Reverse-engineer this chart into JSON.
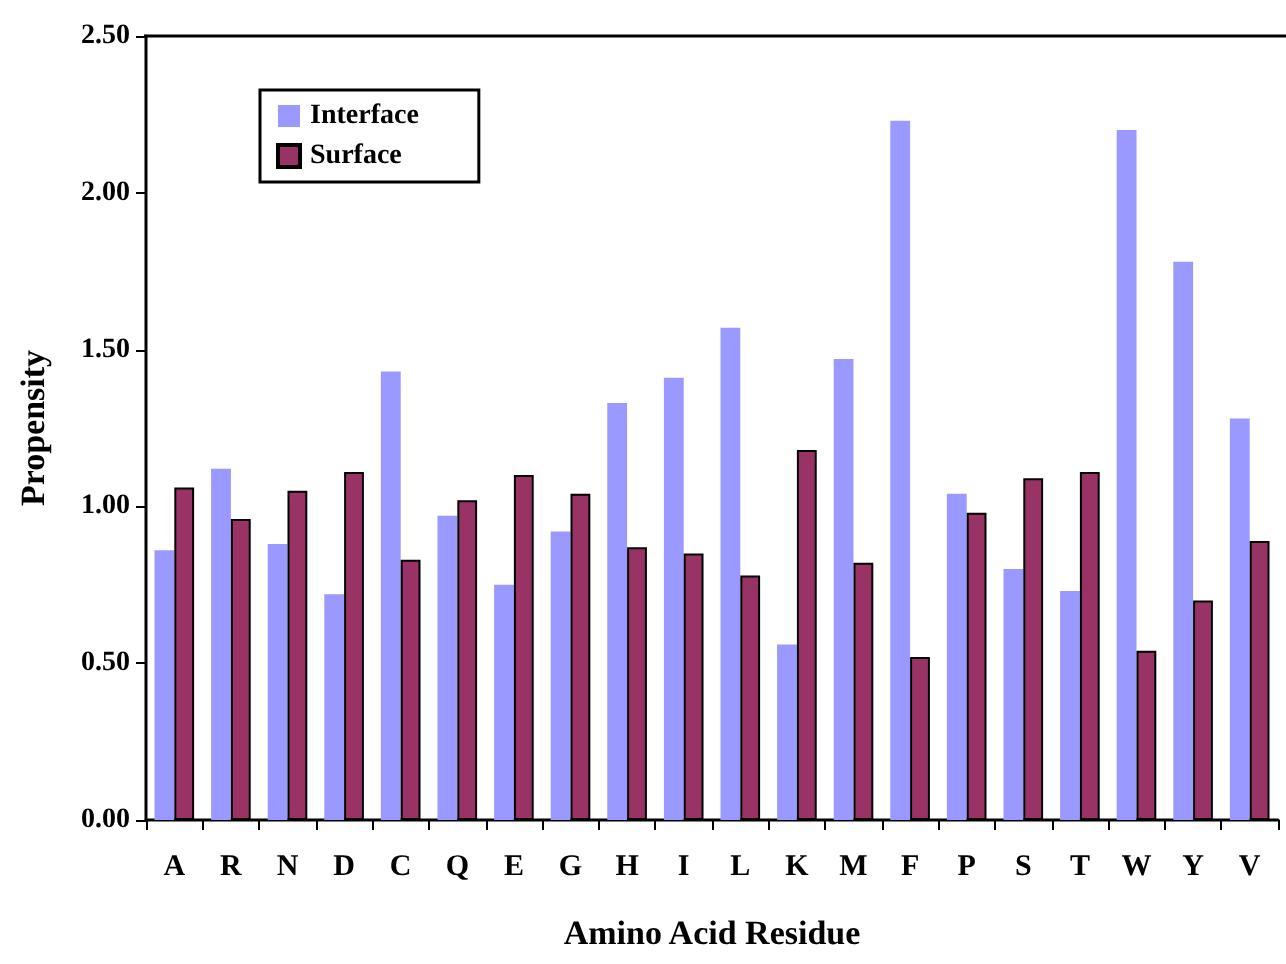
{
  "chart_data": {
    "type": "bar",
    "xlabel": "Amino Acid Residue",
    "ylabel": "Propensity",
    "categories": [
      "A",
      "R",
      "N",
      "D",
      "C",
      "Q",
      "E",
      "G",
      "H",
      "I",
      "L",
      "K",
      "M",
      "F",
      "P",
      "S",
      "T",
      "W",
      "Y",
      "V"
    ],
    "series": [
      {
        "name": "Interface",
        "color": "#9999ff",
        "values": [
          0.86,
          1.12,
          0.88,
          0.72,
          1.43,
          0.97,
          0.75,
          0.92,
          1.33,
          1.41,
          1.57,
          0.56,
          1.47,
          2.23,
          1.04,
          0.8,
          0.73,
          2.2,
          1.78,
          1.28
        ]
      },
      {
        "name": "Surface",
        "color": "#993366",
        "values": [
          1.06,
          0.96,
          1.05,
          1.11,
          0.83,
          1.02,
          1.1,
          1.04,
          0.87,
          0.85,
          0.78,
          1.18,
          0.82,
          0.52,
          0.98,
          1.09,
          1.11,
          0.54,
          0.7,
          0.89
        ]
      }
    ],
    "ylim": [
      0,
      2.5
    ],
    "yticks": [
      {
        "value": 0,
        "label": "0.00"
      },
      {
        "value": 0.5,
        "label": "0.50"
      },
      {
        "value": 1,
        "label": "1.00"
      },
      {
        "value": 1.5,
        "label": "1.50"
      },
      {
        "value": 2,
        "label": "2.00"
      },
      {
        "value": 2.5,
        "label": "2.50"
      }
    ],
    "grid": false,
    "legend": "top left"
  }
}
